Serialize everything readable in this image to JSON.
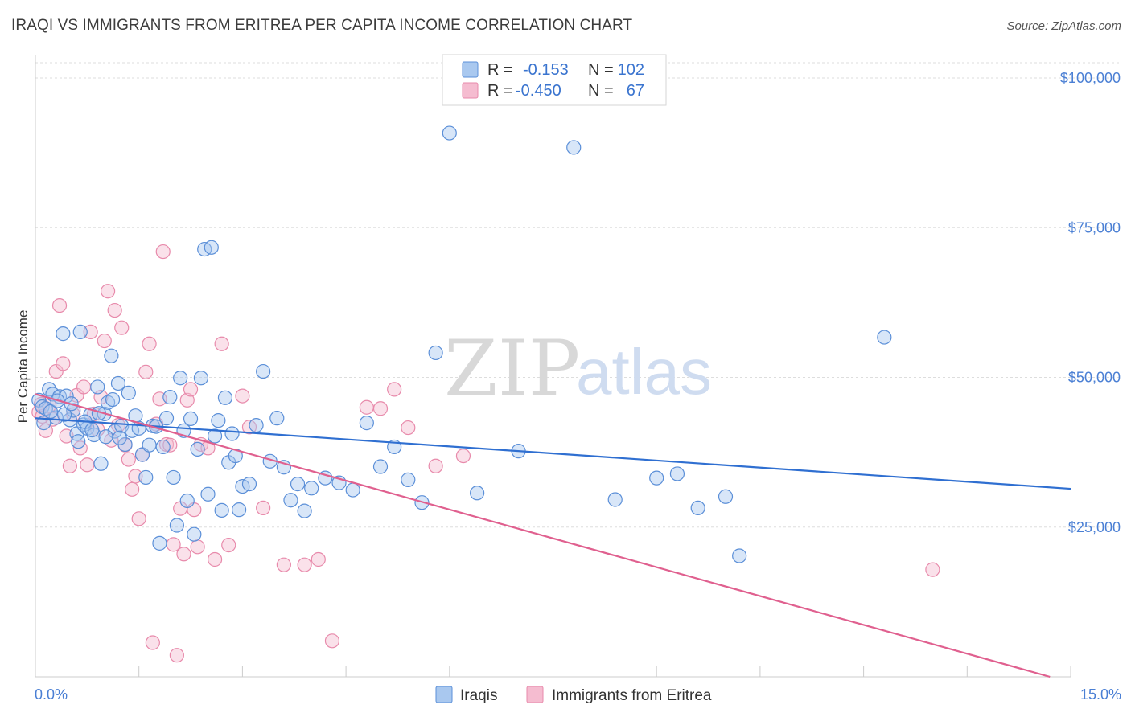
{
  "header": {
    "title": "IRAQI VS IMMIGRANTS FROM ERITREA PER CAPITA INCOME CORRELATION CHART",
    "source": "Source: ZipAtlas.com"
  },
  "watermark": {
    "zip": "ZIP",
    "atlas": "atlas"
  },
  "colors": {
    "blue_fill": "#a9c8ef",
    "blue_stroke": "#5b8fd8",
    "blue_line": "#2f6fd1",
    "pink_fill": "#f5bcd0",
    "pink_stroke": "#e88aab",
    "pink_line": "#e0608f",
    "tick_label": "#4a7fd4",
    "grid": "#dddddd"
  },
  "legend": {
    "rows": [
      {
        "r_label": "R =",
        "r_value": "-0.153",
        "n_label": "N =",
        "n_value": "102",
        "color": "blue"
      },
      {
        "r_label": "R =",
        "r_value": "-0.450",
        "n_label": "N =",
        "n_value": "67",
        "color": "pink"
      }
    ]
  },
  "bottom_legend": {
    "series1": "Iraqis",
    "series2": "Immigrants from Eritrea"
  },
  "chart_data": {
    "type": "scatter",
    "title": "IRAQI VS IMMIGRANTS FROM ERITREA PER CAPITA INCOME CORRELATION CHART",
    "xlabel": "",
    "ylabel": "Per Capita Income",
    "xlim": [
      0,
      15
    ],
    "ylim": [
      0,
      102000
    ],
    "x_tick_labels": [
      "0.0%",
      "15.0%"
    ],
    "y_ticks": [
      25000,
      50000,
      75000,
      100000
    ],
    "y_tick_labels": [
      "$25,000",
      "$50,000",
      "$75,000",
      "$100,000"
    ],
    "grid": true,
    "legend_position": "top-center",
    "series": [
      {
        "name": "Iraqis",
        "color": "blue",
        "trend": {
          "x": [
            0,
            15
          ],
          "y": [
            43200,
            31400
          ]
        },
        "points": [
          [
            0.05,
            46200
          ],
          [
            0.1,
            45100
          ],
          [
            0.15,
            44800
          ],
          [
            0.2,
            48000
          ],
          [
            0.25,
            47200
          ],
          [
            0.3,
            43300
          ],
          [
            0.35,
            46800
          ],
          [
            0.4,
            57300
          ],
          [
            0.45,
            46900
          ],
          [
            0.5,
            42900
          ],
          [
            0.55,
            44500
          ],
          [
            0.6,
            40600
          ],
          [
            0.65,
            57600
          ],
          [
            0.7,
            42100
          ],
          [
            0.75,
            41500
          ],
          [
            0.8,
            43800
          ],
          [
            0.85,
            40400
          ],
          [
            0.9,
            48400
          ],
          [
            0.95,
            35600
          ],
          [
            1.0,
            43900
          ],
          [
            1.05,
            45800
          ],
          [
            1.1,
            53600
          ],
          [
            1.15,
            41000
          ],
          [
            1.2,
            49000
          ],
          [
            1.25,
            41900
          ],
          [
            1.3,
            38800
          ],
          [
            1.35,
            47400
          ],
          [
            1.4,
            41100
          ],
          [
            1.45,
            43600
          ],
          [
            1.5,
            41500
          ],
          [
            1.55,
            37100
          ],
          [
            1.6,
            33300
          ],
          [
            1.65,
            38700
          ],
          [
            1.7,
            41900
          ],
          [
            1.75,
            41800
          ],
          [
            1.8,
            22300
          ],
          [
            1.85,
            38400
          ],
          [
            1.9,
            43200
          ],
          [
            1.95,
            46700
          ],
          [
            2.0,
            33300
          ],
          [
            2.05,
            25300
          ],
          [
            2.1,
            49900
          ],
          [
            2.15,
            41100
          ],
          [
            2.2,
            29400
          ],
          [
            2.25,
            43100
          ],
          [
            2.3,
            23800
          ],
          [
            2.35,
            38000
          ],
          [
            2.4,
            49900
          ],
          [
            2.45,
            71400
          ],
          [
            2.5,
            30500
          ],
          [
            2.55,
            71700
          ],
          [
            2.6,
            40200
          ],
          [
            2.65,
            42800
          ],
          [
            2.7,
            27800
          ],
          [
            2.75,
            46600
          ],
          [
            2.8,
            35800
          ],
          [
            2.85,
            40600
          ],
          [
            2.9,
            36900
          ],
          [
            2.95,
            27900
          ],
          [
            3.0,
            31800
          ],
          [
            3.1,
            32200
          ],
          [
            3.2,
            42000
          ],
          [
            3.3,
            51000
          ],
          [
            3.4,
            36000
          ],
          [
            3.5,
            43200
          ],
          [
            3.6,
            35000
          ],
          [
            3.7,
            29500
          ],
          [
            3.8,
            32200
          ],
          [
            3.9,
            27700
          ],
          [
            4.0,
            31500
          ],
          [
            4.2,
            33200
          ],
          [
            4.4,
            32400
          ],
          [
            4.6,
            31200
          ],
          [
            4.8,
            42400
          ],
          [
            5.0,
            35100
          ],
          [
            5.2,
            38400
          ],
          [
            5.4,
            32900
          ],
          [
            5.6,
            29100
          ],
          [
            5.8,
            54100
          ],
          [
            6.0,
            90800
          ],
          [
            6.4,
            30700
          ],
          [
            7.0,
            37700
          ],
          [
            7.8,
            88400
          ],
          [
            8.4,
            29600
          ],
          [
            9.0,
            33200
          ],
          [
            9.3,
            33900
          ],
          [
            9.6,
            28200
          ],
          [
            10.0,
            30100
          ],
          [
            10.2,
            20200
          ],
          [
            12.3,
            56700
          ],
          [
            0.12,
            42400
          ],
          [
            0.22,
            44300
          ],
          [
            0.32,
            46100
          ],
          [
            0.42,
            43800
          ],
          [
            0.52,
            45600
          ],
          [
            0.62,
            39300
          ],
          [
            0.72,
            42600
          ],
          [
            0.82,
            41200
          ],
          [
            0.92,
            44000
          ],
          [
            1.02,
            40100
          ],
          [
            1.12,
            46300
          ],
          [
            1.22,
            39900
          ]
        ]
      },
      {
        "name": "Immigrants from Eritrea",
        "color": "pink",
        "trend": {
          "x": [
            0,
            14.7
          ],
          "y": [
            47200,
            0
          ]
        },
        "points": [
          [
            0.05,
            44200
          ],
          [
            0.1,
            43500
          ],
          [
            0.15,
            41100
          ],
          [
            0.2,
            45300
          ],
          [
            0.25,
            43000
          ],
          [
            0.3,
            51000
          ],
          [
            0.35,
            62000
          ],
          [
            0.4,
            52300
          ],
          [
            0.45,
            40200
          ],
          [
            0.5,
            35200
          ],
          [
            0.55,
            43800
          ],
          [
            0.6,
            47000
          ],
          [
            0.65,
            38200
          ],
          [
            0.7,
            48400
          ],
          [
            0.75,
            35400
          ],
          [
            0.8,
            57600
          ],
          [
            0.85,
            43900
          ],
          [
            0.9,
            41300
          ],
          [
            0.95,
            46700
          ],
          [
            1.0,
            56100
          ],
          [
            1.05,
            64400
          ],
          [
            1.1,
            39500
          ],
          [
            1.15,
            61200
          ],
          [
            1.2,
            42000
          ],
          [
            1.25,
            58300
          ],
          [
            1.3,
            38700
          ],
          [
            1.35,
            36300
          ],
          [
            1.4,
            31300
          ],
          [
            1.45,
            33500
          ],
          [
            1.5,
            26400
          ],
          [
            1.55,
            37100
          ],
          [
            1.6,
            50900
          ],
          [
            1.65,
            55600
          ],
          [
            1.7,
            5700
          ],
          [
            1.75,
            42200
          ],
          [
            1.8,
            46400
          ],
          [
            1.85,
            71000
          ],
          [
            1.9,
            38800
          ],
          [
            1.95,
            38700
          ],
          [
            2.0,
            22100
          ],
          [
            2.05,
            3600
          ],
          [
            2.1,
            28100
          ],
          [
            2.15,
            20500
          ],
          [
            2.2,
            46200
          ],
          [
            2.25,
            48000
          ],
          [
            2.3,
            27900
          ],
          [
            2.35,
            21700
          ],
          [
            2.4,
            38800
          ],
          [
            2.5,
            38200
          ],
          [
            2.6,
            19600
          ],
          [
            2.7,
            55600
          ],
          [
            2.8,
            22000
          ],
          [
            3.0,
            46900
          ],
          [
            3.1,
            41700
          ],
          [
            3.3,
            28200
          ],
          [
            3.6,
            18700
          ],
          [
            3.9,
            18700
          ],
          [
            4.1,
            19600
          ],
          [
            4.3,
            6000
          ],
          [
            4.8,
            45000
          ],
          [
            5.0,
            44800
          ],
          [
            5.2,
            48000
          ],
          [
            5.4,
            41600
          ],
          [
            5.8,
            35200
          ],
          [
            6.2,
            36900
          ],
          [
            13.0,
            17900
          ],
          [
            0.08,
            45500
          ]
        ]
      }
    ]
  }
}
